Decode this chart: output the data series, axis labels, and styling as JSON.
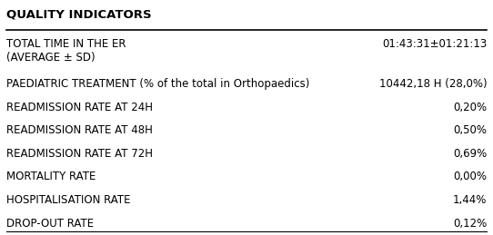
{
  "title": "QUALITY INDICATORS",
  "rows": [
    {
      "label": "TOTAL TIME IN THE ER\n(AVERAGE ± SD)",
      "value": "01:43:31±01:21:13"
    },
    {
      "label": "PAEDIATRIC TREATMENT (% of the total in Orthopaedics)",
      "value": "10442,18 H (28,0%)"
    },
    {
      "label": "READMISSION RATE AT 24H",
      "value": "0,20%"
    },
    {
      "label": "READMISSION RATE AT 48H",
      "value": "0,50%"
    },
    {
      "label": "READMISSION RATE AT 72H",
      "value": "0,69%"
    },
    {
      "label": "MORTALITY RATE",
      "value": "0,00%"
    },
    {
      "label": "HOSPITALISATION RATE",
      "value": "1,44%"
    },
    {
      "label": "DROP-OUT RATE",
      "value": "0,12%"
    }
  ],
  "bg_color": "#ffffff",
  "title_fontsize": 9.5,
  "row_fontsize": 8.5,
  "line_color": "#000000"
}
